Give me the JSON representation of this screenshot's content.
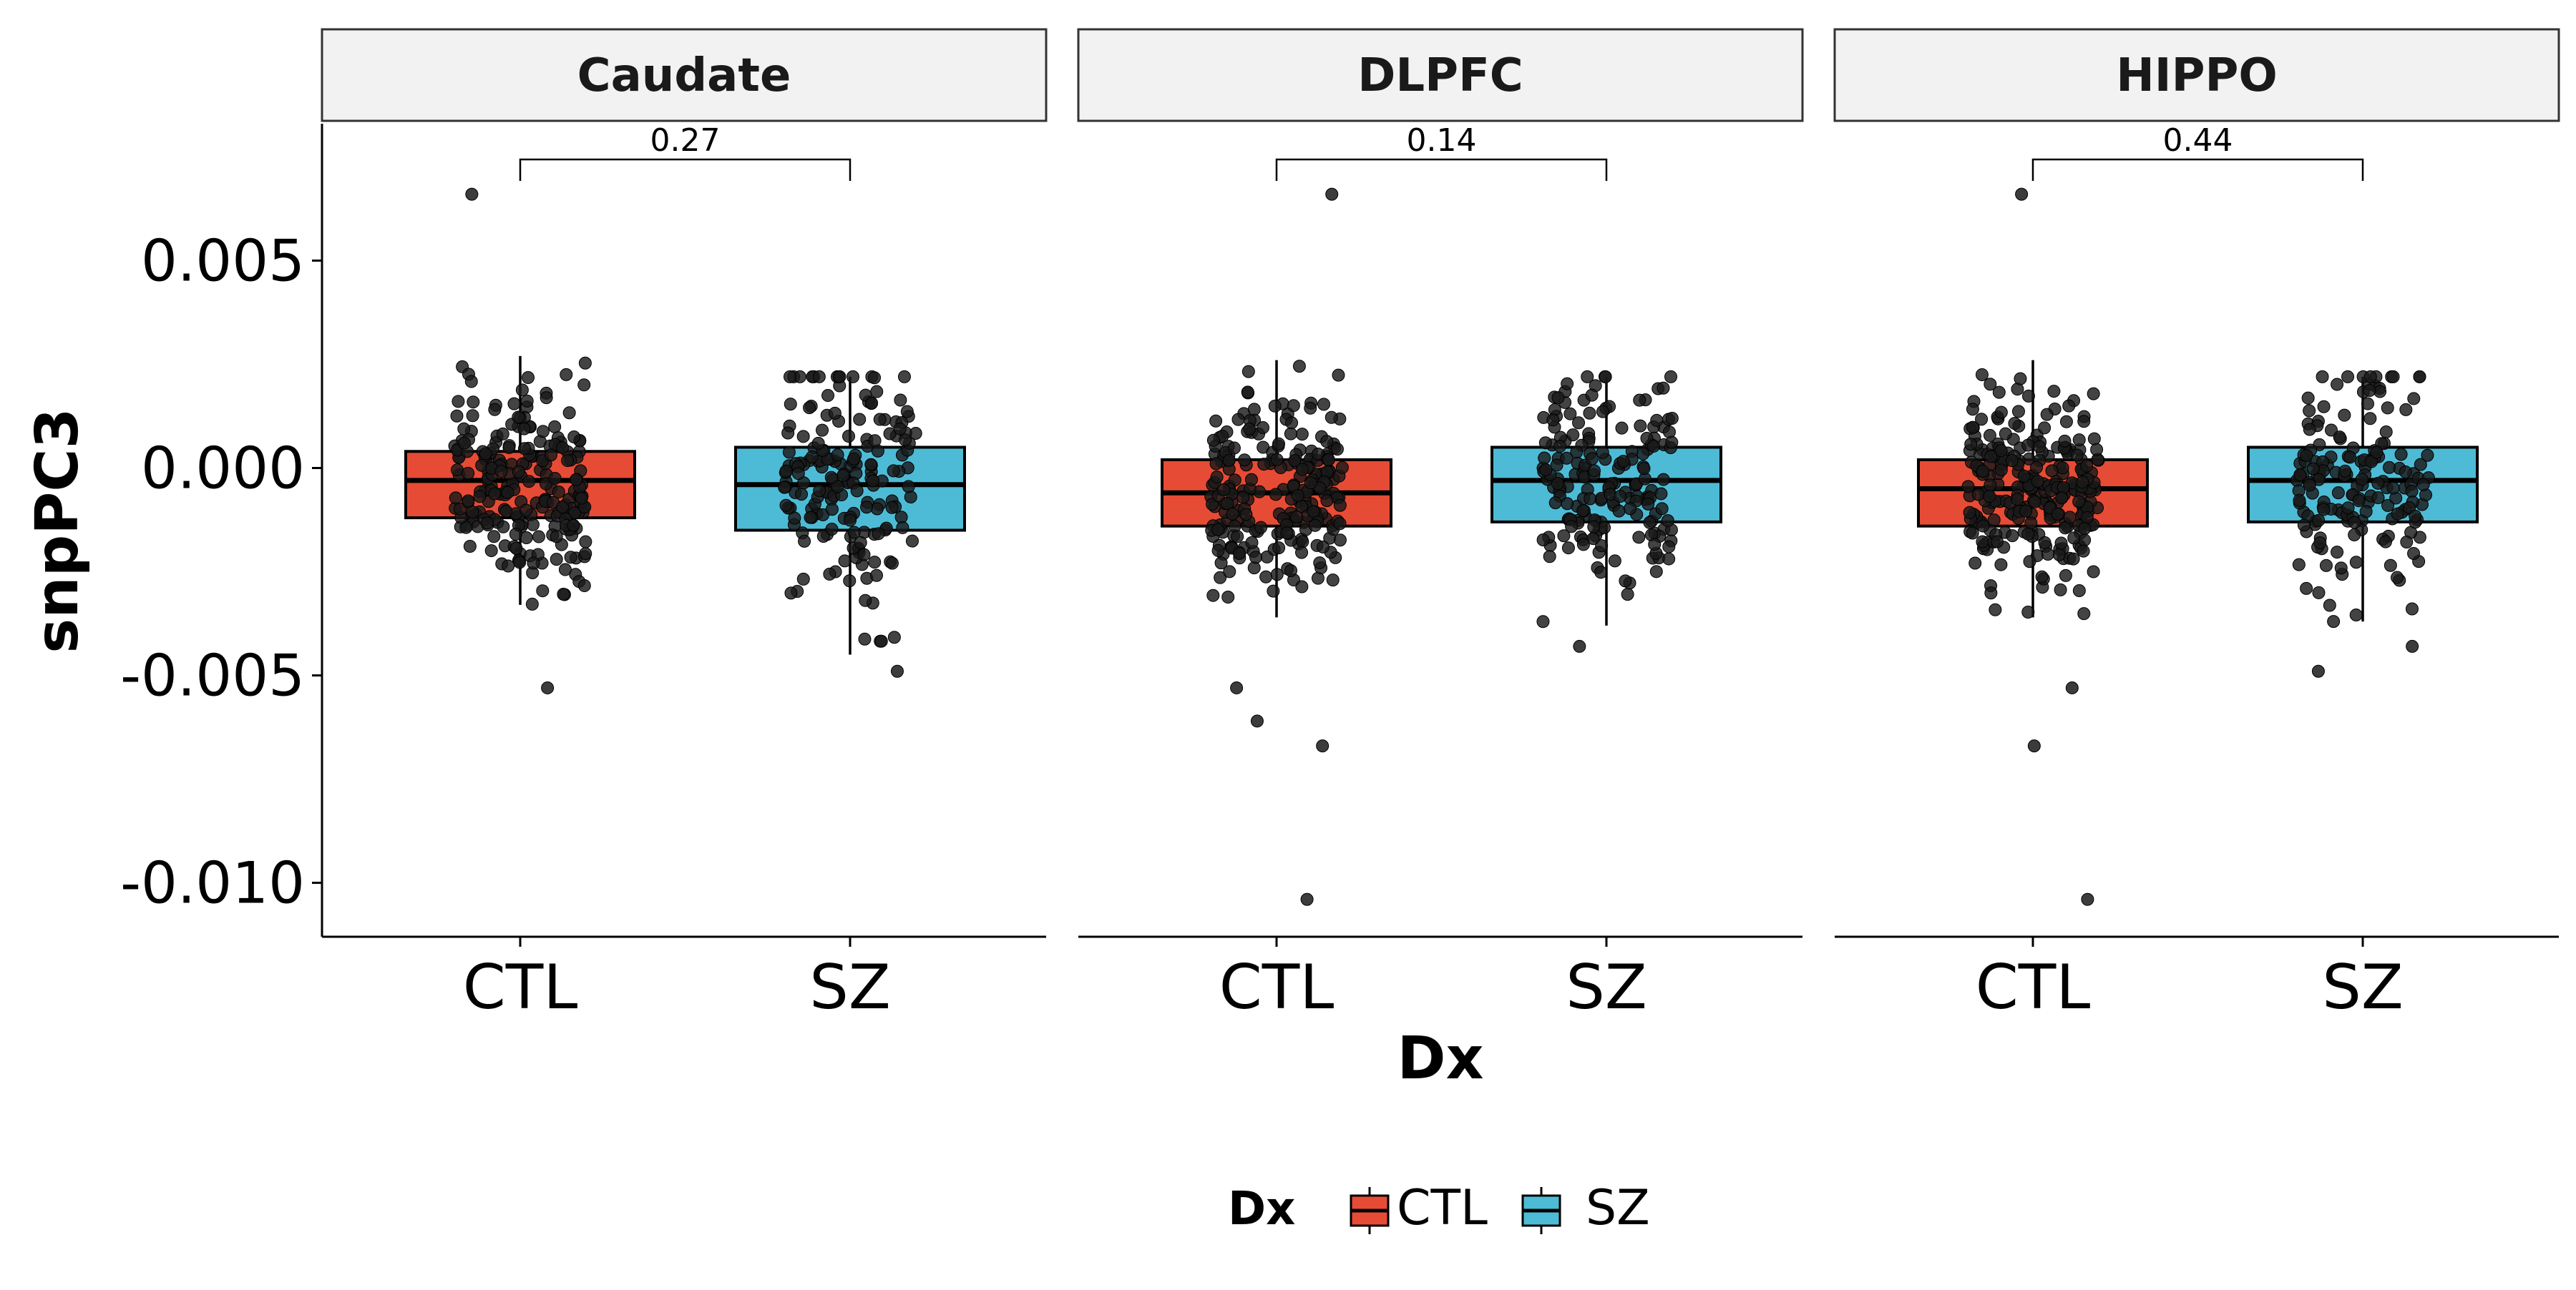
{
  "chart_data": {
    "type": "boxplot",
    "xlabel": "Dx",
    "ylabel": "snpPC3",
    "ylim": [
      -0.0113,
      0.0083
    ],
    "y_ticks": [
      0.005,
      0.0,
      -0.005,
      -0.01
    ],
    "y_tick_labels": [
      "0.005",
      "0.000",
      "-0.005",
      "-0.010"
    ],
    "categories": [
      "CTL",
      "SZ"
    ],
    "legend": {
      "title": "Dx",
      "position": "bottom",
      "entries": [
        {
          "label": "CTL",
          "color": "#E64B35"
        },
        {
          "label": "SZ",
          "color": "#4DBBD5"
        }
      ]
    },
    "panels": [
      {
        "strip": "Caudate",
        "comparison_label": "0.27",
        "boxes": [
          {
            "group": "CTL",
            "q1": -0.0012,
            "median": -0.0003,
            "q3": 0.0004,
            "whisker_low": -0.0033,
            "whisker_high": 0.0027,
            "outliers": [
              0.0066,
              -0.0053
            ],
            "n_points": 230,
            "seed": 11
          },
          {
            "group": "SZ",
            "q1": -0.0015,
            "median": -0.0004,
            "q3": 0.0005,
            "whisker_low": -0.0045,
            "whisker_high": 0.0022,
            "outliers": [
              -0.0049
            ],
            "n_points": 180,
            "seed": 23
          }
        ]
      },
      {
        "strip": "DLPFC",
        "comparison_label": "0.14",
        "boxes": [
          {
            "group": "CTL",
            "q1": -0.0014,
            "median": -0.0006,
            "q3": 0.0002,
            "whisker_low": -0.0036,
            "whisker_high": 0.0026,
            "outliers": [
              0.0066,
              -0.0053,
              -0.0061,
              -0.0067,
              -0.0104
            ],
            "n_points": 230,
            "seed": 37
          },
          {
            "group": "SZ",
            "q1": -0.0013,
            "median": -0.0003,
            "q3": 0.0005,
            "whisker_low": -0.0038,
            "whisker_high": 0.0022,
            "outliers": [
              -0.0043
            ],
            "n_points": 180,
            "seed": 41
          }
        ]
      },
      {
        "strip": "HIPPO",
        "comparison_label": "0.44",
        "boxes": [
          {
            "group": "CTL",
            "q1": -0.0014,
            "median": -0.0005,
            "q3": 0.0002,
            "whisker_low": -0.0036,
            "whisker_high": 0.0026,
            "outliers": [
              0.0066,
              -0.0053,
              -0.0067,
              -0.0104
            ],
            "n_points": 260,
            "seed": 53
          },
          {
            "group": "SZ",
            "q1": -0.0013,
            "median": -0.0003,
            "q3": 0.0005,
            "whisker_low": -0.0037,
            "whisker_high": 0.0022,
            "outliers": [
              -0.0049,
              -0.0043
            ],
            "n_points": 170,
            "seed": 67
          }
        ]
      }
    ]
  }
}
